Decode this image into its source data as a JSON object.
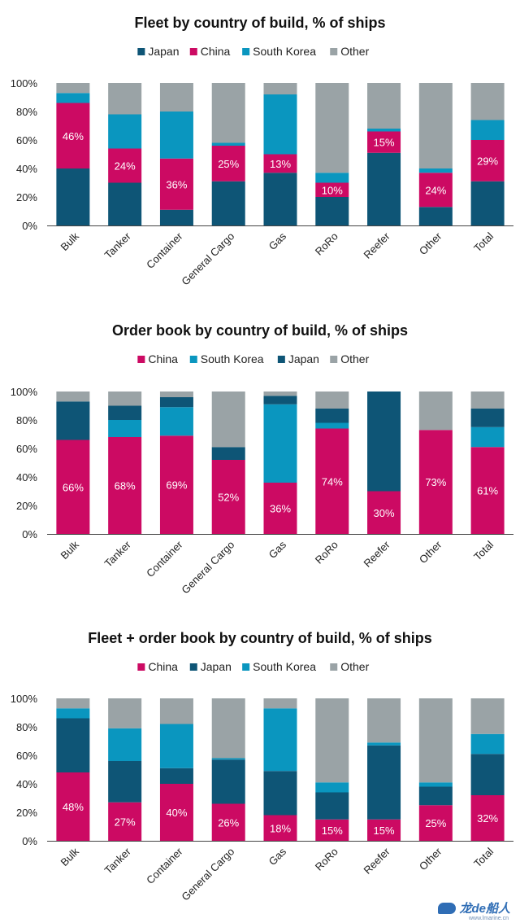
{
  "colors": {
    "Japan": "#0e5576",
    "China": "#cc0a63",
    "South Korea": "#0a96bf",
    "Other": "#9aa3a6"
  },
  "watermark": {
    "text": "龙de船人",
    "sub": "www.lmarine.cn"
  },
  "chart_data": [
    {
      "type": "bar",
      "stacked": true,
      "title": "Fleet by country of build, % of ships",
      "legend_order": [
        "Japan",
        "China",
        "South Korea",
        "Other"
      ],
      "categories": [
        "Bulk",
        "Tanker",
        "Container",
        "General Cargo",
        "Gas",
        "RoRo",
        "Reefer",
        "Other",
        "Total"
      ],
      "stack_order": [
        "Japan",
        "China",
        "South Korea",
        "Other"
      ],
      "series": [
        {
          "name": "Japan",
          "values": [
            40,
            30,
            11,
            31,
            37,
            20,
            51,
            13,
            31
          ]
        },
        {
          "name": "China",
          "values": [
            46,
            24,
            36,
            25,
            13,
            10,
            15,
            24,
            29
          ]
        },
        {
          "name": "South Korea",
          "values": [
            7,
            24,
            33,
            2,
            42,
            7,
            2,
            3,
            14
          ]
        },
        {
          "name": "Other",
          "values": [
            7,
            22,
            20,
            42,
            8,
            63,
            32,
            60,
            26
          ]
        }
      ],
      "labeled_series": "China",
      "data_labels": [
        "46%",
        "24%",
        "36%",
        "25%",
        "13%",
        "10%",
        "15%",
        "24%",
        "29%"
      ],
      "ylim": [
        0,
        100
      ],
      "yticks": [
        "0%",
        "20%",
        "40%",
        "60%",
        "80%",
        "100%"
      ],
      "grid": false,
      "legend_position": "top"
    },
    {
      "type": "bar",
      "stacked": true,
      "title": "Order book by country of build, % of ships",
      "legend_order": [
        "China",
        "South Korea",
        "Japan",
        "Other"
      ],
      "categories": [
        "Bulk",
        "Tanker",
        "Container",
        "General Cargo",
        "Gas",
        "RoRo",
        "Reefer",
        "Other",
        "Total"
      ],
      "stack_order": [
        "China",
        "South Korea",
        "Japan",
        "Other"
      ],
      "series": [
        {
          "name": "China",
          "values": [
            66,
            68,
            69,
            52,
            36,
            74,
            30,
            73,
            61
          ]
        },
        {
          "name": "South Korea",
          "values": [
            0,
            12,
            20,
            0,
            55,
            4,
            0,
            0,
            14
          ]
        },
        {
          "name": "Japan",
          "values": [
            27,
            10,
            7,
            9,
            6,
            10,
            70,
            0,
            13
          ]
        },
        {
          "name": "Other",
          "values": [
            7,
            10,
            4,
            39,
            3,
            12,
            0,
            27,
            12
          ]
        }
      ],
      "labeled_series": "China",
      "data_labels": [
        "66%",
        "68%",
        "69%",
        "52%",
        "36%",
        "74%",
        "30%",
        "73%",
        "61%"
      ],
      "ylim": [
        0,
        100
      ],
      "yticks": [
        "0%",
        "20%",
        "40%",
        "60%",
        "80%",
        "100%"
      ],
      "grid": false,
      "legend_position": "top"
    },
    {
      "type": "bar",
      "stacked": true,
      "title": "Fleet + order book by country of build, % of ships",
      "legend_order": [
        "China",
        "Japan",
        "South Korea",
        "Other"
      ],
      "categories": [
        "Bulk",
        "Tanker",
        "Container",
        "General Cargo",
        "Gas",
        "RoRo",
        "Reefer",
        "Other",
        "Total"
      ],
      "stack_order": [
        "China",
        "Japan",
        "South Korea",
        "Other"
      ],
      "series": [
        {
          "name": "China",
          "values": [
            48,
            27,
            40,
            26,
            18,
            15,
            15,
            25,
            32
          ]
        },
        {
          "name": "Japan",
          "values": [
            38,
            29,
            11,
            31,
            31,
            19,
            52,
            13,
            29
          ]
        },
        {
          "name": "South Korea",
          "values": [
            7,
            23,
            31,
            1,
            44,
            7,
            2,
            3,
            14
          ]
        },
        {
          "name": "Other",
          "values": [
            7,
            21,
            18,
            42,
            7,
            59,
            31,
            59,
            25
          ]
        }
      ],
      "labeled_series": "China",
      "data_labels": [
        "48%",
        "27%",
        "40%",
        "26%",
        "18%",
        "15%",
        "15%",
        "25%",
        "32%"
      ],
      "ylim": [
        0,
        100
      ],
      "yticks": [
        "0%",
        "20%",
        "40%",
        "60%",
        "80%",
        "100%"
      ],
      "grid": false,
      "legend_position": "top"
    }
  ]
}
